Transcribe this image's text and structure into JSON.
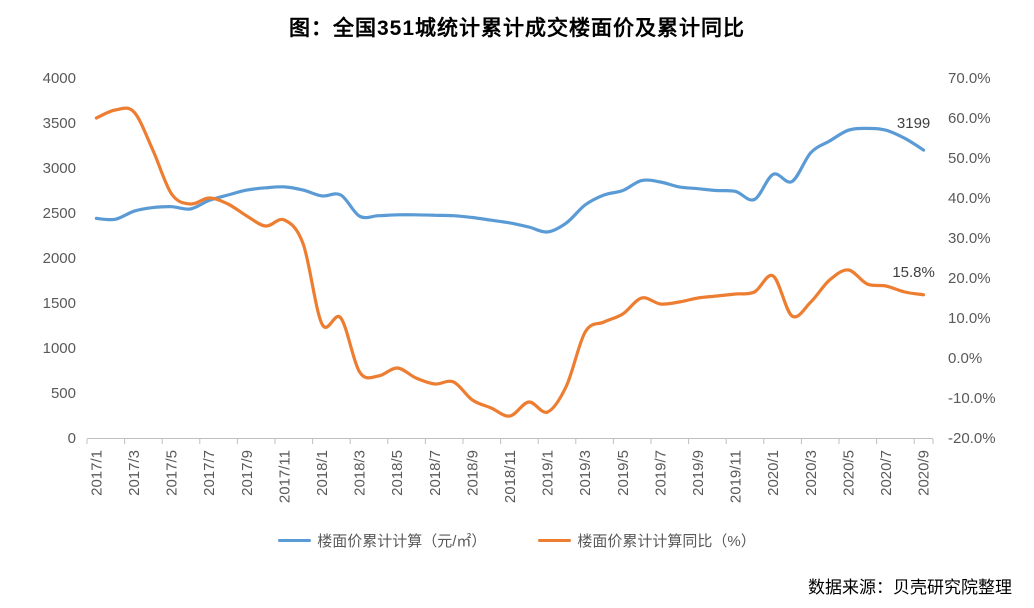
{
  "chart_data": {
    "type": "line",
    "title": "图：全国351城统计累计成交楼面价及累计同比",
    "source": "数据来源：贝壳研究院整理",
    "x": [
      "2017/1",
      "2017/2",
      "2017/3",
      "2017/4",
      "2017/5",
      "2017/6",
      "2017/7",
      "2017/8",
      "2017/9",
      "2017/10",
      "2017/11",
      "2017/12",
      "2018/1",
      "2018/2",
      "2018/3",
      "2018/4",
      "2018/5",
      "2018/6",
      "2018/7",
      "2018/8",
      "2018/9",
      "2018/10",
      "2018/11",
      "2018/12",
      "2019/1",
      "2019/2",
      "2019/3",
      "2019/4",
      "2019/5",
      "2019/6",
      "2019/7",
      "2019/8",
      "2019/9",
      "2019/10",
      "2019/11",
      "2019/12",
      "2020/1",
      "2020/2",
      "2020/3",
      "2020/4",
      "2020/5",
      "2020/6",
      "2020/7",
      "2020/8",
      "2020/9"
    ],
    "x_tick_labels": [
      "2017/1",
      "2017/3",
      "2017/5",
      "2017/7",
      "2017/9",
      "2017/11",
      "2018/1",
      "2018/3",
      "2018/5",
      "2018/7",
      "2018/9",
      "2018/11",
      "2019/1",
      "2019/3",
      "2019/5",
      "2019/7",
      "2019/9",
      "2019/11",
      "2020/1",
      "2020/3",
      "2020/5",
      "2020/7",
      "2020/9"
    ],
    "left_axis": {
      "min": 0,
      "max": 4000,
      "step": 500,
      "ticks": [
        "4000",
        "3500",
        "3000",
        "2500",
        "2000",
        "1500",
        "1000",
        "500",
        "0"
      ]
    },
    "right_axis": {
      "min": -20,
      "max": 70,
      "step": 10,
      "ticks": [
        "70.0%",
        "60.0%",
        "50.0%",
        "40.0%",
        "30.0%",
        "20.0%",
        "10.0%",
        "0.0%",
        "-10.0%",
        "-20.0%"
      ]
    },
    "series": [
      {
        "name": "楼面价累计计算（元/㎡）",
        "axis": "left",
        "color": "#5B9BD5",
        "end_label": "3199",
        "values": [
          2440,
          2430,
          2520,
          2560,
          2570,
          2545,
          2640,
          2700,
          2755,
          2780,
          2790,
          2755,
          2690,
          2700,
          2465,
          2470,
          2480,
          2480,
          2475,
          2470,
          2450,
          2420,
          2390,
          2345,
          2290,
          2390,
          2590,
          2700,
          2750,
          2860,
          2845,
          2790,
          2770,
          2750,
          2740,
          2650,
          2930,
          2850,
          3170,
          3300,
          3420,
          3440,
          3420,
          3330,
          3199
        ]
      },
      {
        "name": "楼面价累计计算同比（%）",
        "axis": "right",
        "color": "#ED7D31",
        "end_label": "15.8%",
        "values": [
          60,
          62,
          61.5,
          52,
          41,
          38.5,
          40,
          38.5,
          35.5,
          33,
          34.5,
          28.5,
          8.5,
          10,
          -3.5,
          -4.5,
          -2.5,
          -5,
          -6.5,
          -6,
          -10.5,
          -12.5,
          -14.5,
          -11,
          -13.5,
          -7,
          6.5,
          9,
          11,
          15,
          13.5,
          14,
          15,
          15.5,
          16,
          16.5,
          20.5,
          10.5,
          14,
          19.5,
          22,
          18.5,
          18,
          16.5,
          15.8
        ]
      }
    ],
    "axis_color": "#BFBFBF",
    "label_color": "#595959",
    "data_label_color": "#404040",
    "legend_position": "bottom",
    "grid": "off"
  }
}
